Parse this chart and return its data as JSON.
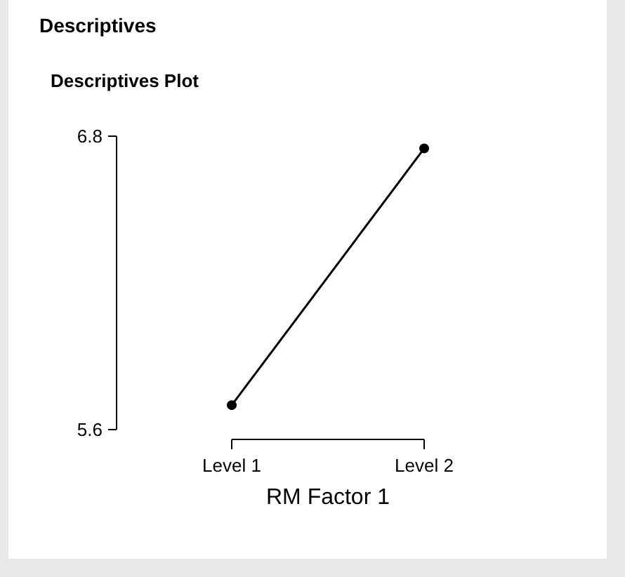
{
  "chart_data": {
    "type": "line",
    "title": "Descriptives",
    "subtitle": "Descriptives Plot",
    "xlabel": "RM Factor 1",
    "categories": [
      "Level 1",
      "Level 2"
    ],
    "series": [
      {
        "color": "#000000",
        "values": [
          5.7,
          6.75
        ]
      }
    ],
    "ylim": [
      5.6,
      6.8
    ],
    "yticks": [
      5.6,
      6.8
    ],
    "marker": "circle",
    "line_style": "solid"
  }
}
